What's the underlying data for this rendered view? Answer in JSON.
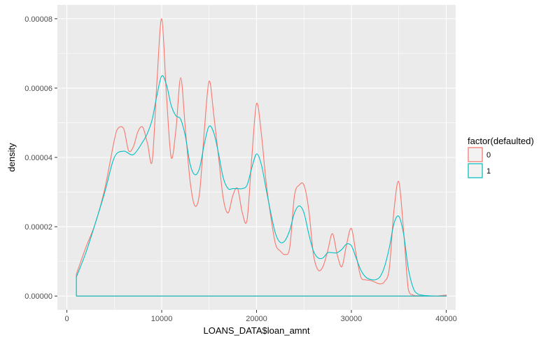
{
  "chart_data": {
    "type": "line",
    "xlabel": "LOANS_DATA$loan_amnt",
    "ylabel": "density",
    "xlim": [
      -1000,
      41000
    ],
    "ylim": [
      -4e-06,
      8.4e-05
    ],
    "x_ticks": [
      0,
      10000,
      20000,
      30000,
      40000
    ],
    "x_tick_labels": [
      "0",
      "10000",
      "20000",
      "30000",
      "40000"
    ],
    "y_ticks": [
      0,
      2e-05,
      4e-05,
      6e-05,
      8e-05
    ],
    "y_tick_labels": [
      "0.00000",
      "0.00002",
      "0.00004",
      "0.00006",
      "0.00008"
    ],
    "grid": true,
    "legend": {
      "title": "factor(defaulted)",
      "position": "right"
    },
    "series": [
      {
        "name": "0",
        "color": "#f8766d",
        "x": [
          1000,
          2000,
          3000,
          4000,
          5000,
          5400,
          6000,
          6500,
          7000,
          7500,
          8000,
          8500,
          9000,
          9500,
          10000,
          10500,
          11000,
          11500,
          12000,
          12500,
          13000,
          13500,
          14000,
          14500,
          15000,
          15500,
          16000,
          16500,
          17000,
          17500,
          18000,
          18500,
          19000,
          19500,
          20000,
          20500,
          21000,
          21500,
          22000,
          22500,
          23000,
          23500,
          24000,
          24500,
          25000,
          25500,
          26000,
          26500,
          27000,
          27500,
          28000,
          28500,
          29000,
          29500,
          30000,
          30500,
          31000,
          31500,
          32000,
          32500,
          33000,
          33500,
          34000,
          34500,
          35000,
          35500,
          36000,
          36500,
          37000,
          38000,
          39000,
          40000
        ],
        "y": [
          6.3e-06,
          1.4e-05,
          2.1e-05,
          3.1e-05,
          4.5e-05,
          4.84e-05,
          4.82e-05,
          4.2e-05,
          4.3e-05,
          4.75e-05,
          4.87e-05,
          4.4e-05,
          3.9e-05,
          6.2e-05,
          8e-05,
          5.8e-05,
          4e-05,
          4.8e-05,
          6.3e-05,
          4.8e-05,
          3.3e-05,
          2.6e-05,
          3e-05,
          4.8e-05,
          6.2e-05,
          5.2e-05,
          4e-05,
          2.8e-05,
          2.4e-05,
          2.9e-05,
          3.1e-05,
          2.4e-05,
          2.2e-05,
          4e-05,
          5.55e-05,
          4.7e-05,
          3.3e-05,
          2.3e-05,
          1.5e-05,
          1.3e-05,
          1.2e-05,
          1.4e-05,
          2.9e-05,
          3.2e-05,
          3.2e-05,
          2.5e-05,
          1.2e-05,
          7.5e-06,
          8.5e-06,
          1.3e-05,
          1.8e-05,
          1.2e-05,
          8.5e-06,
          1.5e-05,
          1.95e-05,
          1.2e-05,
          5.5e-06,
          4.7e-06,
          4.5e-06,
          4e-06,
          3.5e-06,
          4.2e-06,
          8e-06,
          2.5e-05,
          3.3e-05,
          1.9e-05,
          2e-06,
          3e-07,
          1e-07,
          0,
          0,
          3e-07
        ]
      },
      {
        "name": "1",
        "color": "#00bfc4",
        "x": [
          1000,
          2000,
          3000,
          4000,
          5000,
          6000,
          7000,
          8000,
          8500,
          9000,
          9500,
          10000,
          10500,
          11000,
          11500,
          12000,
          12500,
          13000,
          13500,
          14000,
          14500,
          15000,
          15500,
          16000,
          16500,
          17000,
          17500,
          18000,
          18500,
          19000,
          19500,
          20000,
          20500,
          21000,
          21500,
          22000,
          22500,
          23000,
          23500,
          24000,
          24500,
          25000,
          25500,
          26000,
          26500,
          27000,
          27500,
          28000,
          28500,
          29000,
          29500,
          30000,
          30500,
          31000,
          31500,
          32000,
          32500,
          33000,
          33500,
          34000,
          34500,
          35000,
          35500,
          36000,
          36500,
          37000,
          38000,
          39000,
          40000
        ],
        "y": [
          5.5e-06,
          1.25e-05,
          2.1e-05,
          3e-05,
          4e-05,
          4.18e-05,
          4.08e-05,
          4.45e-05,
          4.7e-05,
          5.1e-05,
          5.8e-05,
          6.35e-05,
          6.1e-05,
          5.5e-05,
          5.2e-05,
          5.1e-05,
          4.6e-05,
          3.8e-05,
          3.5e-05,
          3.7e-05,
          4.4e-05,
          4.9e-05,
          4.7e-05,
          4.1e-05,
          3.4e-05,
          3.1e-05,
          3.1e-05,
          3.1e-05,
          3.1e-05,
          3.2e-05,
          3.7e-05,
          4.1e-05,
          3.8e-05,
          3.1e-05,
          2.4e-05,
          1.8e-05,
          1.55e-05,
          1.6e-05,
          1.9e-05,
          2.4e-05,
          2.6e-05,
          2.4e-05,
          1.8e-05,
          1.3e-05,
          1.1e-05,
          1.1e-05,
          1.25e-05,
          1.25e-05,
          1.25e-05,
          1.35e-05,
          1.5e-05,
          1.45e-05,
          1.1e-05,
          7.5e-06,
          5.5e-06,
          4.8e-06,
          4.7e-06,
          5.5e-06,
          8.5e-06,
          1.4e-05,
          2.1e-05,
          2.3e-05,
          1.8e-05,
          8e-06,
          2.5e-06,
          6e-07,
          1e-07,
          0,
          0
        ]
      }
    ],
    "colors": {
      "panel_background": "#ebebeb",
      "grid_major": "#ffffff",
      "series_0": "#f8766d",
      "series_1": "#00bfc4"
    }
  }
}
